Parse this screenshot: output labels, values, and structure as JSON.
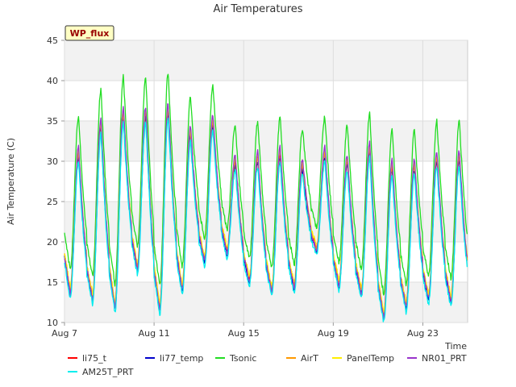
{
  "chart_data": {
    "type": "line",
    "title": "Air Temperatures",
    "xlabel": "Time",
    "ylabel": "Air Temperature (C)",
    "badge": "WP_flux",
    "ylim": [
      10,
      45
    ],
    "yticks": [
      10,
      15,
      20,
      25,
      30,
      35,
      40,
      45
    ],
    "xlim": [
      "2023-08-07",
      "2023-08-25T00:00"
    ],
    "xticks": [
      {
        "date": "2023-08-07",
        "label": "Aug 7"
      },
      {
        "date": "2023-08-11",
        "label": "Aug 11"
      },
      {
        "date": "2023-08-15",
        "label": "Aug 15"
      },
      {
        "date": "2023-08-19",
        "label": "Aug 19"
      },
      {
        "date": "2023-08-23",
        "label": "Aug 23"
      }
    ],
    "grid": true,
    "legend_position": "bottom",
    "daily_cycle": {
      "dates": [
        "2023-08-07",
        "2023-08-08",
        "2023-08-09",
        "2023-08-10",
        "2023-08-11",
        "2023-08-12",
        "2023-08-13",
        "2023-08-14",
        "2023-08-15",
        "2023-08-16",
        "2023-08-17",
        "2023-08-18",
        "2023-08-19",
        "2023-08-20",
        "2023-08-21",
        "2023-08-22",
        "2023-08-23",
        "2023-08-24"
      ],
      "t_start": 18.0,
      "daily_min": [
        13.5,
        12.8,
        11.8,
        16.5,
        11.5,
        14.0,
        17.5,
        18.5,
        15.0,
        13.8,
        14.2,
        18.8,
        14.5,
        13.5,
        10.5,
        11.8,
        12.8,
        12.5
      ],
      "daily_max": [
        30.5,
        34.0,
        35.5,
        35.5,
        36.0,
        33.0,
        34.5,
        29.5,
        30.0,
        30.5,
        29.0,
        30.5,
        29.5,
        31.0,
        29.0,
        29.0,
        30.0,
        30.0
      ]
    },
    "series": [
      {
        "name": "li75_t",
        "color": "#ff0000",
        "offset_max": 0.5,
        "offset_min": 0.4
      },
      {
        "name": "li77_temp",
        "color": "#0000cc",
        "offset_max": 0.0,
        "offset_min": 0.0
      },
      {
        "name": "Tsonic",
        "color": "#22dd22",
        "offset_max": 5.0,
        "offset_min": 3.0
      },
      {
        "name": "AirT",
        "color": "#ff9900",
        "offset_max": 0.6,
        "offset_min": 0.5
      },
      {
        "name": "PanelTemp",
        "color": "#ffee00",
        "offset_max": 1.0,
        "offset_min": 0.8
      },
      {
        "name": "NR01_PRT",
        "color": "#9933cc",
        "offset_max": 1.3,
        "offset_min": 0.1
      },
      {
        "name": "AM25T_PRT",
        "color": "#00eeee",
        "offset_max": -0.6,
        "offset_min": -0.5
      }
    ]
  }
}
